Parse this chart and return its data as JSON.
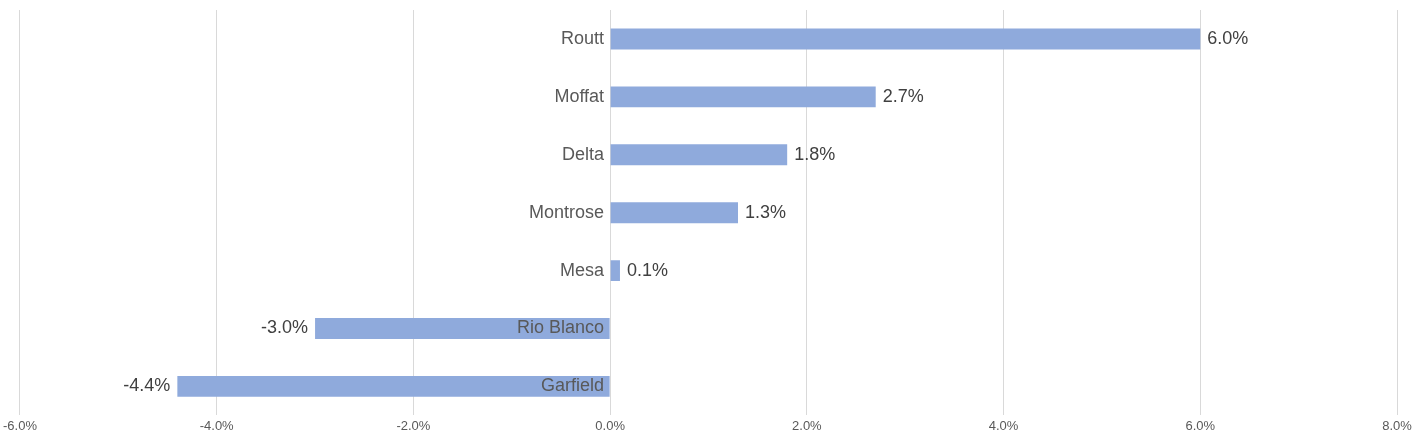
{
  "chart_data": {
    "type": "bar",
    "orientation": "horizontal",
    "categories": [
      "Routt",
      "Moffat",
      "Delta",
      "Montrose",
      "Mesa",
      "Rio Blanco",
      "Garfield"
    ],
    "values": [
      6.0,
      2.7,
      1.8,
      1.3,
      0.1,
      -3.0,
      -4.4
    ],
    "value_labels": [
      "6.0%",
      "2.7%",
      "1.8%",
      "1.3%",
      "0.1%",
      "-3.0%",
      "-4.4%"
    ],
    "color": "#8faadc",
    "xlim": [
      -6,
      8
    ],
    "xticks": [
      {
        "value": -6,
        "label": "-6.0%"
      },
      {
        "value": -4,
        "label": "-4.0%"
      },
      {
        "value": -2,
        "label": "-2.0%"
      },
      {
        "value": 0,
        "label": "0.0%"
      },
      {
        "value": 2,
        "label": "2.0%"
      },
      {
        "value": 4,
        "label": "4.0%"
      },
      {
        "value": 6,
        "label": "6.0%"
      },
      {
        "value": 8,
        "label": "8.0%"
      }
    ],
    "grid": "x",
    "legend": false
  }
}
